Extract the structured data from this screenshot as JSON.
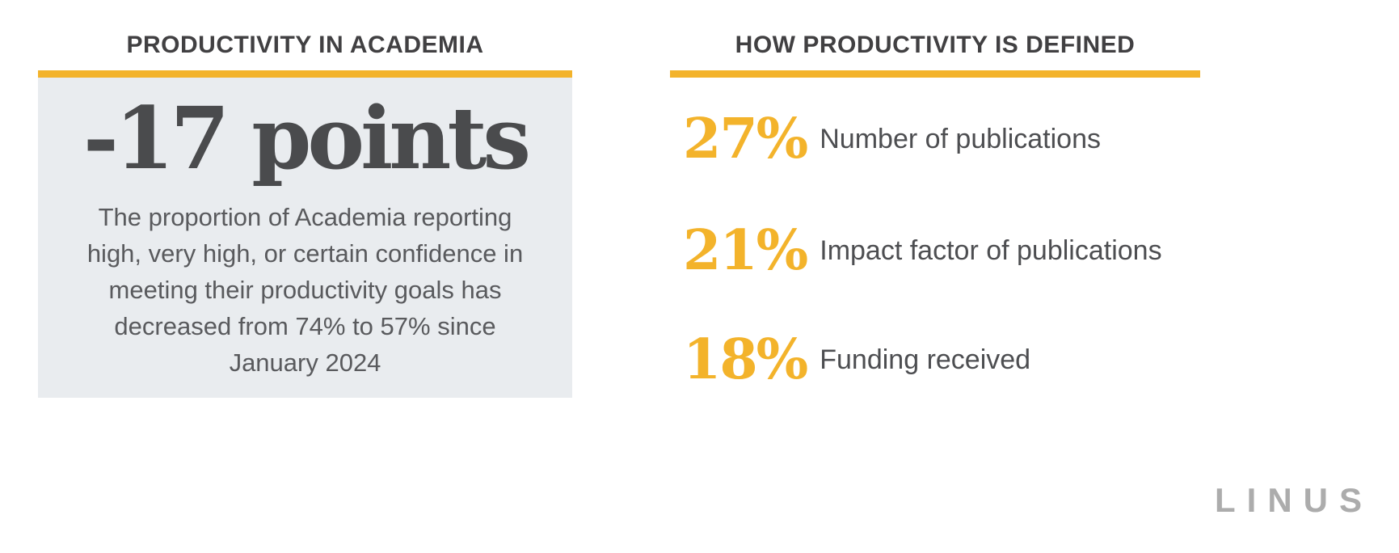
{
  "colors": {
    "accent_yellow": "#F3B32B",
    "panel_gray": "#E9ECEF",
    "heading_text": "#414042",
    "stat_text": "#4A4B4D",
    "body_text": "#595A5D",
    "logo_gray": "#ACACAC"
  },
  "left_section": {
    "title": "PRODUCTIVITY IN ACADEMIA",
    "stat_value": "-17 points",
    "description_lines": [
      "The proportion of Academia reporting",
      "high, very high, or certain confidence in",
      "meeting their productivity goals has",
      "decreased from 74% to 57% since",
      "January 2024"
    ]
  },
  "right_section": {
    "title": "HOW PRODUCTIVITY IS DEFINED",
    "stats": [
      {
        "pct": "27%",
        "label": "Number of publications"
      },
      {
        "pct": "21%",
        "label": "Impact factor of publications"
      },
      {
        "pct": "18%",
        "label": "Funding received"
      }
    ]
  },
  "footer": {
    "logo": "LINUS"
  },
  "chart_data": [
    {
      "type": "table",
      "title": "PRODUCTIVITY IN ACADEMIA",
      "headline_value": -17,
      "headline_unit": "points",
      "from_pct": 74,
      "to_pct": 57,
      "period": "since January 2024",
      "annotation": "The proportion of Academia reporting high, very high, or certain confidence in meeting their productivity goals has decreased from 74% to 57% since January 2024"
    },
    {
      "type": "table",
      "title": "HOW PRODUCTIVITY IS DEFINED",
      "categories": [
        "Number of publications",
        "Impact factor of publications",
        "Funding received"
      ],
      "values": [
        27,
        21,
        18
      ],
      "unit": "%"
    }
  ]
}
